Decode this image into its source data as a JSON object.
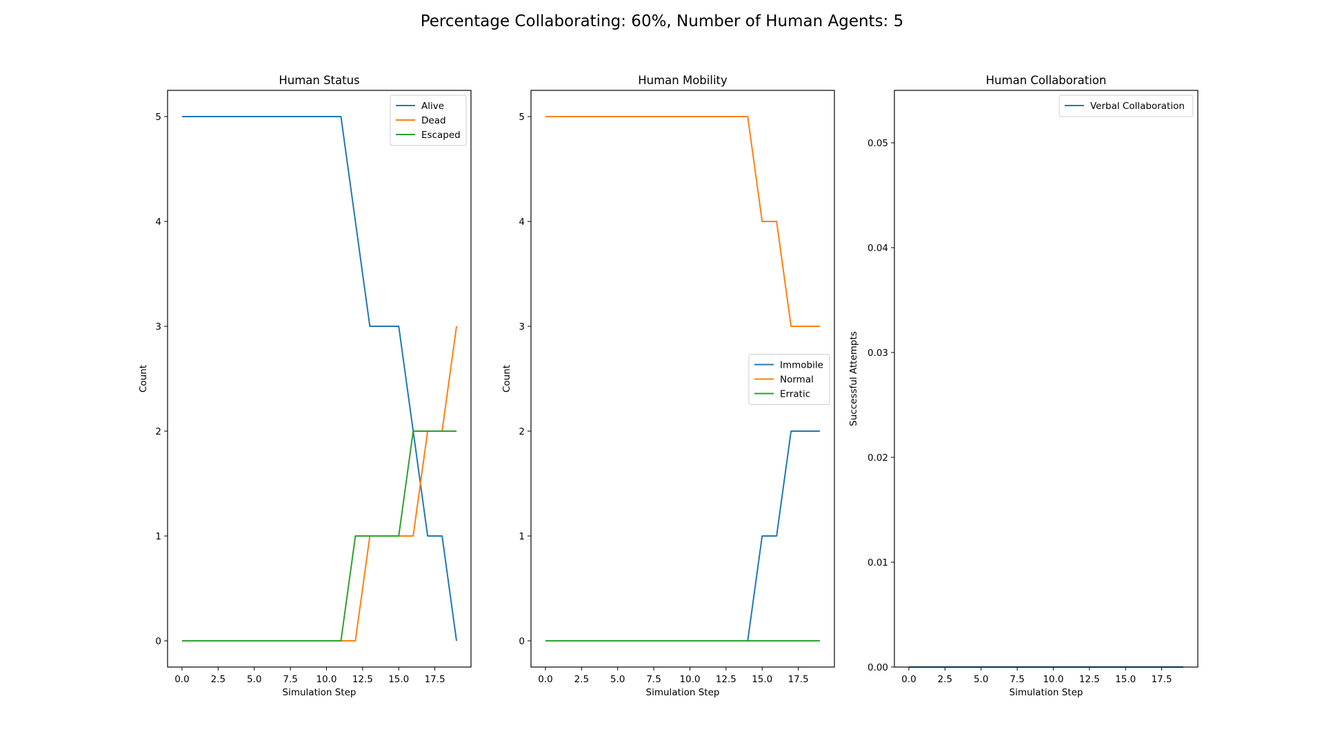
{
  "figure": {
    "suptitle": "Percentage Collaborating: 60%, Number of Human Agents: 5"
  },
  "colors": {
    "blue": "#1f77b4",
    "orange": "#ff7f0e",
    "green": "#2ca02c"
  },
  "chart_data": [
    {
      "type": "line",
      "title": "Human Status",
      "xlabel": "Simulation Step",
      "ylabel": "Count",
      "xlim": [
        -1,
        20
      ],
      "ylim": [
        -0.25,
        5.25
      ],
      "xticks": [
        0.0,
        2.5,
        5.0,
        7.5,
        10.0,
        12.5,
        15.0,
        17.5
      ],
      "xtick_labels": [
        "0.0",
        "2.5",
        "5.0",
        "7.5",
        "10.0",
        "12.5",
        "15.0",
        "17.5"
      ],
      "yticks": [
        0,
        1,
        2,
        3,
        4,
        5
      ],
      "ytick_labels": [
        "0",
        "1",
        "2",
        "3",
        "4",
        "5"
      ],
      "legend_position": "upper right",
      "x": [
        0,
        1,
        2,
        3,
        4,
        5,
        6,
        7,
        8,
        9,
        10,
        11,
        12,
        13,
        14,
        15,
        16,
        17,
        18,
        19
      ],
      "series": [
        {
          "name": "Alive",
          "color": "#1f77b4",
          "values": [
            5,
            5,
            5,
            5,
            5,
            5,
            5,
            5,
            5,
            5,
            5,
            5,
            4,
            3,
            3,
            3,
            2,
            1,
            1,
            0
          ]
        },
        {
          "name": "Dead",
          "color": "#ff7f0e",
          "values": [
            0,
            0,
            0,
            0,
            0,
            0,
            0,
            0,
            0,
            0,
            0,
            0,
            0,
            1,
            1,
            1,
            1,
            2,
            2,
            3
          ]
        },
        {
          "name": "Escaped",
          "color": "#2ca02c",
          "values": [
            0,
            0,
            0,
            0,
            0,
            0,
            0,
            0,
            0,
            0,
            0,
            0,
            1,
            1,
            1,
            1,
            2,
            2,
            2,
            2
          ]
        }
      ]
    },
    {
      "type": "line",
      "title": "Human Mobility",
      "xlabel": "Simulation Step",
      "ylabel": "Count",
      "xlim": [
        -1,
        20
      ],
      "ylim": [
        -0.25,
        5.25
      ],
      "xticks": [
        0.0,
        2.5,
        5.0,
        7.5,
        10.0,
        12.5,
        15.0,
        17.5
      ],
      "xtick_labels": [
        "0.0",
        "2.5",
        "5.0",
        "7.5",
        "10.0",
        "12.5",
        "15.0",
        "17.5"
      ],
      "yticks": [
        0,
        1,
        2,
        3,
        4,
        5
      ],
      "ytick_labels": [
        "0",
        "1",
        "2",
        "3",
        "4",
        "5"
      ],
      "legend_position": "center right",
      "x": [
        0,
        1,
        2,
        3,
        4,
        5,
        6,
        7,
        8,
        9,
        10,
        11,
        12,
        13,
        14,
        15,
        16,
        17,
        18,
        19
      ],
      "series": [
        {
          "name": "Immobile",
          "color": "#1f77b4",
          "values": [
            0,
            0,
            0,
            0,
            0,
            0,
            0,
            0,
            0,
            0,
            0,
            0,
            0,
            0,
            0,
            1,
            1,
            2,
            2,
            2
          ]
        },
        {
          "name": "Normal",
          "color": "#ff7f0e",
          "values": [
            5,
            5,
            5,
            5,
            5,
            5,
            5,
            5,
            5,
            5,
            5,
            5,
            5,
            5,
            5,
            4,
            4,
            3,
            3,
            3
          ]
        },
        {
          "name": "Erratic",
          "color": "#2ca02c",
          "values": [
            0,
            0,
            0,
            0,
            0,
            0,
            0,
            0,
            0,
            0,
            0,
            0,
            0,
            0,
            0,
            0,
            0,
            0,
            0,
            0
          ]
        }
      ]
    },
    {
      "type": "line",
      "title": "Human Collaboration",
      "xlabel": "Simulation Step",
      "ylabel": "Successful Attempts",
      "xlim": [
        -1,
        20
      ],
      "ylim": [
        0,
        0.055
      ],
      "xticks": [
        0.0,
        2.5,
        5.0,
        7.5,
        10.0,
        12.5,
        15.0,
        17.5
      ],
      "xtick_labels": [
        "0.0",
        "2.5",
        "5.0",
        "7.5",
        "10.0",
        "12.5",
        "15.0",
        "17.5"
      ],
      "yticks": [
        0,
        0.01,
        0.02,
        0.03,
        0.04,
        0.05
      ],
      "ytick_labels": [
        "0.00",
        "0.01",
        "0.02",
        "0.03",
        "0.04",
        "0.05"
      ],
      "legend_position": "upper right",
      "x": [
        0,
        1,
        2,
        3,
        4,
        5,
        6,
        7,
        8,
        9,
        10,
        11,
        12,
        13,
        14,
        15,
        16,
        17,
        18,
        19
      ],
      "series": [
        {
          "name": "Verbal Collaboration",
          "color": "#1f77b4",
          "values": [
            0,
            0,
            0,
            0,
            0,
            0,
            0,
            0,
            0,
            0,
            0,
            0,
            0,
            0,
            0,
            0,
            0,
            0,
            0,
            0
          ]
        }
      ]
    }
  ]
}
